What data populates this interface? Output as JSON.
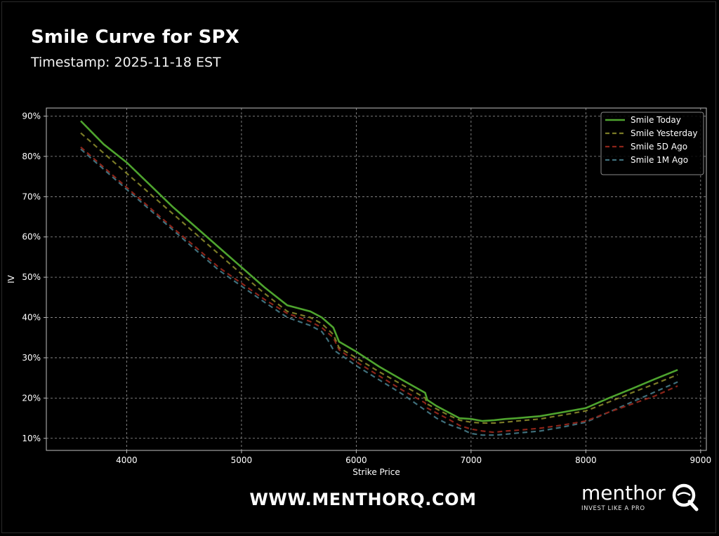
{
  "header": {
    "title": "Smile Curve for SPX",
    "subtitle": "Timestamp: 2025-11-18 EST"
  },
  "footer": {
    "url": "WWW.MENTHORQ.COM",
    "brand_name": "menthor",
    "brand_tagline": "INVEST LIKE A PRO",
    "logo_icon": "q-magnifier-icon"
  },
  "chart_data": {
    "type": "line",
    "xlabel": "Strike Price",
    "ylabel": "IV",
    "xlim": [
      3300,
      9050
    ],
    "ylim": [
      7,
      92
    ],
    "xticks": [
      4000,
      5000,
      6000,
      7000,
      8000,
      9000
    ],
    "yticks": [
      10,
      20,
      30,
      40,
      50,
      60,
      70,
      80,
      90
    ],
    "yticklabels": [
      "10%",
      "20%",
      "30%",
      "40%",
      "50%",
      "60%",
      "70%",
      "80%",
      "90%"
    ],
    "grid": true,
    "legend_position": "top-right",
    "colors": {
      "background": "#000000",
      "axes": "#bfbfbf",
      "grid": "#9a9a9a",
      "text": "#ffffff"
    },
    "series": [
      {
        "name": "Smile Today",
        "color": "#4ea42e",
        "dash": "solid",
        "x": [
          3600,
          3800,
          4000,
          4200,
          4400,
          4600,
          4800,
          5000,
          5200,
          5400,
          5600,
          5700,
          5800,
          5850,
          6000,
          6200,
          6400,
          6600,
          6620,
          6700,
          6800,
          6900,
          7000,
          7100,
          7200,
          7300,
          7400,
          7600,
          7800,
          8000,
          8200,
          8400,
          8600,
          8800
        ],
        "y": [
          88.8,
          83.0,
          78.5,
          73.0,
          67.5,
          62.5,
          57.5,
          52.5,
          47.5,
          43.0,
          41.5,
          40.0,
          37.5,
          34.0,
          31.5,
          27.8,
          24.5,
          21.3,
          19.5,
          18.0,
          16.5,
          15.0,
          14.8,
          14.3,
          14.5,
          14.8,
          15.0,
          15.5,
          16.5,
          17.5,
          20.0,
          22.3,
          24.7,
          27.0
        ]
      },
      {
        "name": "Smile Yesterday",
        "color": "#7a7a26",
        "dash": "dashed",
        "x": [
          3600,
          3800,
          4000,
          4200,
          4400,
          4600,
          4800,
          5000,
          5200,
          5400,
          5600,
          5700,
          5800,
          5850,
          6000,
          6200,
          6400,
          6600,
          6620,
          6700,
          6800,
          6900,
          7000,
          7100,
          7200,
          7300,
          7400,
          7600,
          7800,
          8000,
          8200,
          8400,
          8600,
          8800
        ],
        "y": [
          85.8,
          80.8,
          75.8,
          70.8,
          65.8,
          60.8,
          55.8,
          50.8,
          46.0,
          41.5,
          40.0,
          38.5,
          35.8,
          32.5,
          30.0,
          26.5,
          23.3,
          20.0,
          18.5,
          17.3,
          15.8,
          14.5,
          14.0,
          13.8,
          13.8,
          14.0,
          14.3,
          14.8,
          15.8,
          16.8,
          19.0,
          21.3,
          23.5,
          25.8
        ]
      },
      {
        "name": "Smile 5D Ago",
        "color": "#8c2419",
        "dash": "dashed",
        "x": [
          3600,
          3800,
          4000,
          4200,
          4400,
          4600,
          4800,
          5000,
          5200,
          5400,
          5600,
          5700,
          5800,
          5850,
          6000,
          6200,
          6400,
          6600,
          6620,
          6700,
          6800,
          6900,
          7000,
          7100,
          7200,
          7300,
          7400,
          7600,
          7800,
          8000,
          8200,
          8400,
          8600,
          8800
        ],
        "y": [
          82.3,
          77.3,
          72.3,
          67.3,
          62.3,
          57.5,
          52.5,
          48.5,
          44.5,
          41.0,
          39.0,
          37.5,
          35.0,
          32.0,
          29.0,
          25.5,
          22.0,
          18.8,
          17.5,
          16.3,
          14.8,
          13.2,
          12.3,
          11.8,
          11.5,
          11.8,
          12.0,
          12.5,
          13.3,
          14.3,
          16.5,
          18.5,
          20.5,
          23.0
        ]
      },
      {
        "name": "Smile 1M Ago",
        "color": "#3f6f7b",
        "dash": "dashed",
        "x": [
          3600,
          3800,
          4000,
          4200,
          4400,
          4600,
          4800,
          5000,
          5200,
          5400,
          5600,
          5700,
          5750,
          5800,
          5850,
          6000,
          6200,
          6400,
          6600,
          6700,
          6800,
          6900,
          7000,
          7100,
          7200,
          7300,
          7400,
          7600,
          7800,
          8000,
          8200,
          8400,
          8600,
          8800
        ],
        "y": [
          81.8,
          76.8,
          71.8,
          66.8,
          61.8,
          56.8,
          51.8,
          47.8,
          43.8,
          40.0,
          38.0,
          36.5,
          34.5,
          32.0,
          31.0,
          28.0,
          24.5,
          21.0,
          17.0,
          15.0,
          13.5,
          12.5,
          11.2,
          10.8,
          10.8,
          11.0,
          11.3,
          11.8,
          12.8,
          14.0,
          16.5,
          19.0,
          21.5,
          24.0
        ]
      }
    ]
  }
}
